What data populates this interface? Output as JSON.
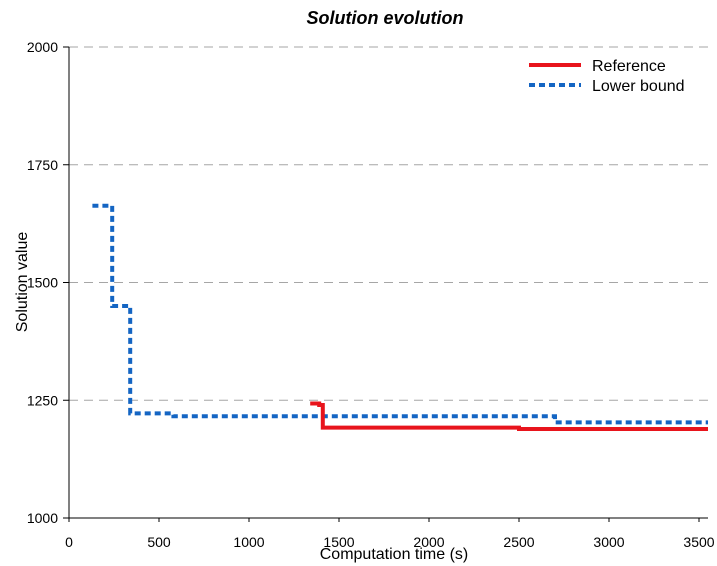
{
  "chart_data": {
    "type": "line",
    "title": "Solution evolution",
    "xlabel": "Computation time (s)",
    "ylabel": "Solution value",
    "xlim": [
      0,
      3550
    ],
    "ylim": [
      1000,
      2000
    ],
    "x_ticks": [
      "0",
      "500",
      "1000",
      "1500",
      "2000",
      "2500",
      "3000",
      "3500"
    ],
    "x_tick_values": [
      0,
      500,
      1000,
      1500,
      2000,
      2500,
      3000,
      3500
    ],
    "y_ticks": [
      "1000",
      "1250",
      "1500",
      "1750",
      "2000"
    ],
    "y_tick_values": [
      1000,
      1250,
      1500,
      1750,
      2000
    ],
    "grid": "horizontal dashed",
    "legend_position": "top-right",
    "series": [
      {
        "name": "Reference",
        "color": "#e8141c",
        "style": "solid",
        "step": true,
        "x": [
          1340,
          1390,
          1390,
          1410,
          1410,
          2500,
          2500,
          3550
        ],
        "y": [
          1243,
          1243,
          1240,
          1240,
          1192,
          1192,
          1189,
          1189
        ]
      },
      {
        "name": "Lower bound",
        "color": "#1465c3",
        "style": "dotted",
        "step": true,
        "x": [
          130,
          240,
          240,
          330,
          330,
          340,
          340,
          580,
          580,
          2700,
          2700,
          3550
        ],
        "y": [
          1663,
          1663,
          1450,
          1450,
          1450,
          1450,
          1222,
          1222,
          1216,
          1216,
          1203,
          1203
        ]
      }
    ]
  }
}
